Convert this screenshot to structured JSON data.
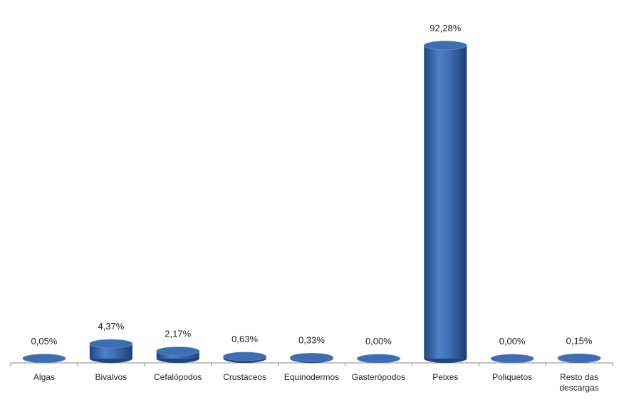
{
  "chart_data": {
    "type": "bar",
    "categories": [
      "Algas",
      "Bivalvos",
      "Cefalópodos",
      "Crustáceos",
      "Equinodermos",
      "Gasterópodos",
      "Peixes",
      "Poliquetos",
      "Resto das descargas"
    ],
    "values": [
      0.05,
      4.37,
      2.17,
      0.63,
      0.33,
      0.0,
      92.28,
      0.0,
      0.15
    ],
    "value_labels": [
      "0,05%",
      "4,37%",
      "2,17%",
      "0,63%",
      "0,33%",
      "0,00%",
      "92,28%",
      "0,00%",
      "0,15%"
    ],
    "color": "#3e6db3"
  }
}
